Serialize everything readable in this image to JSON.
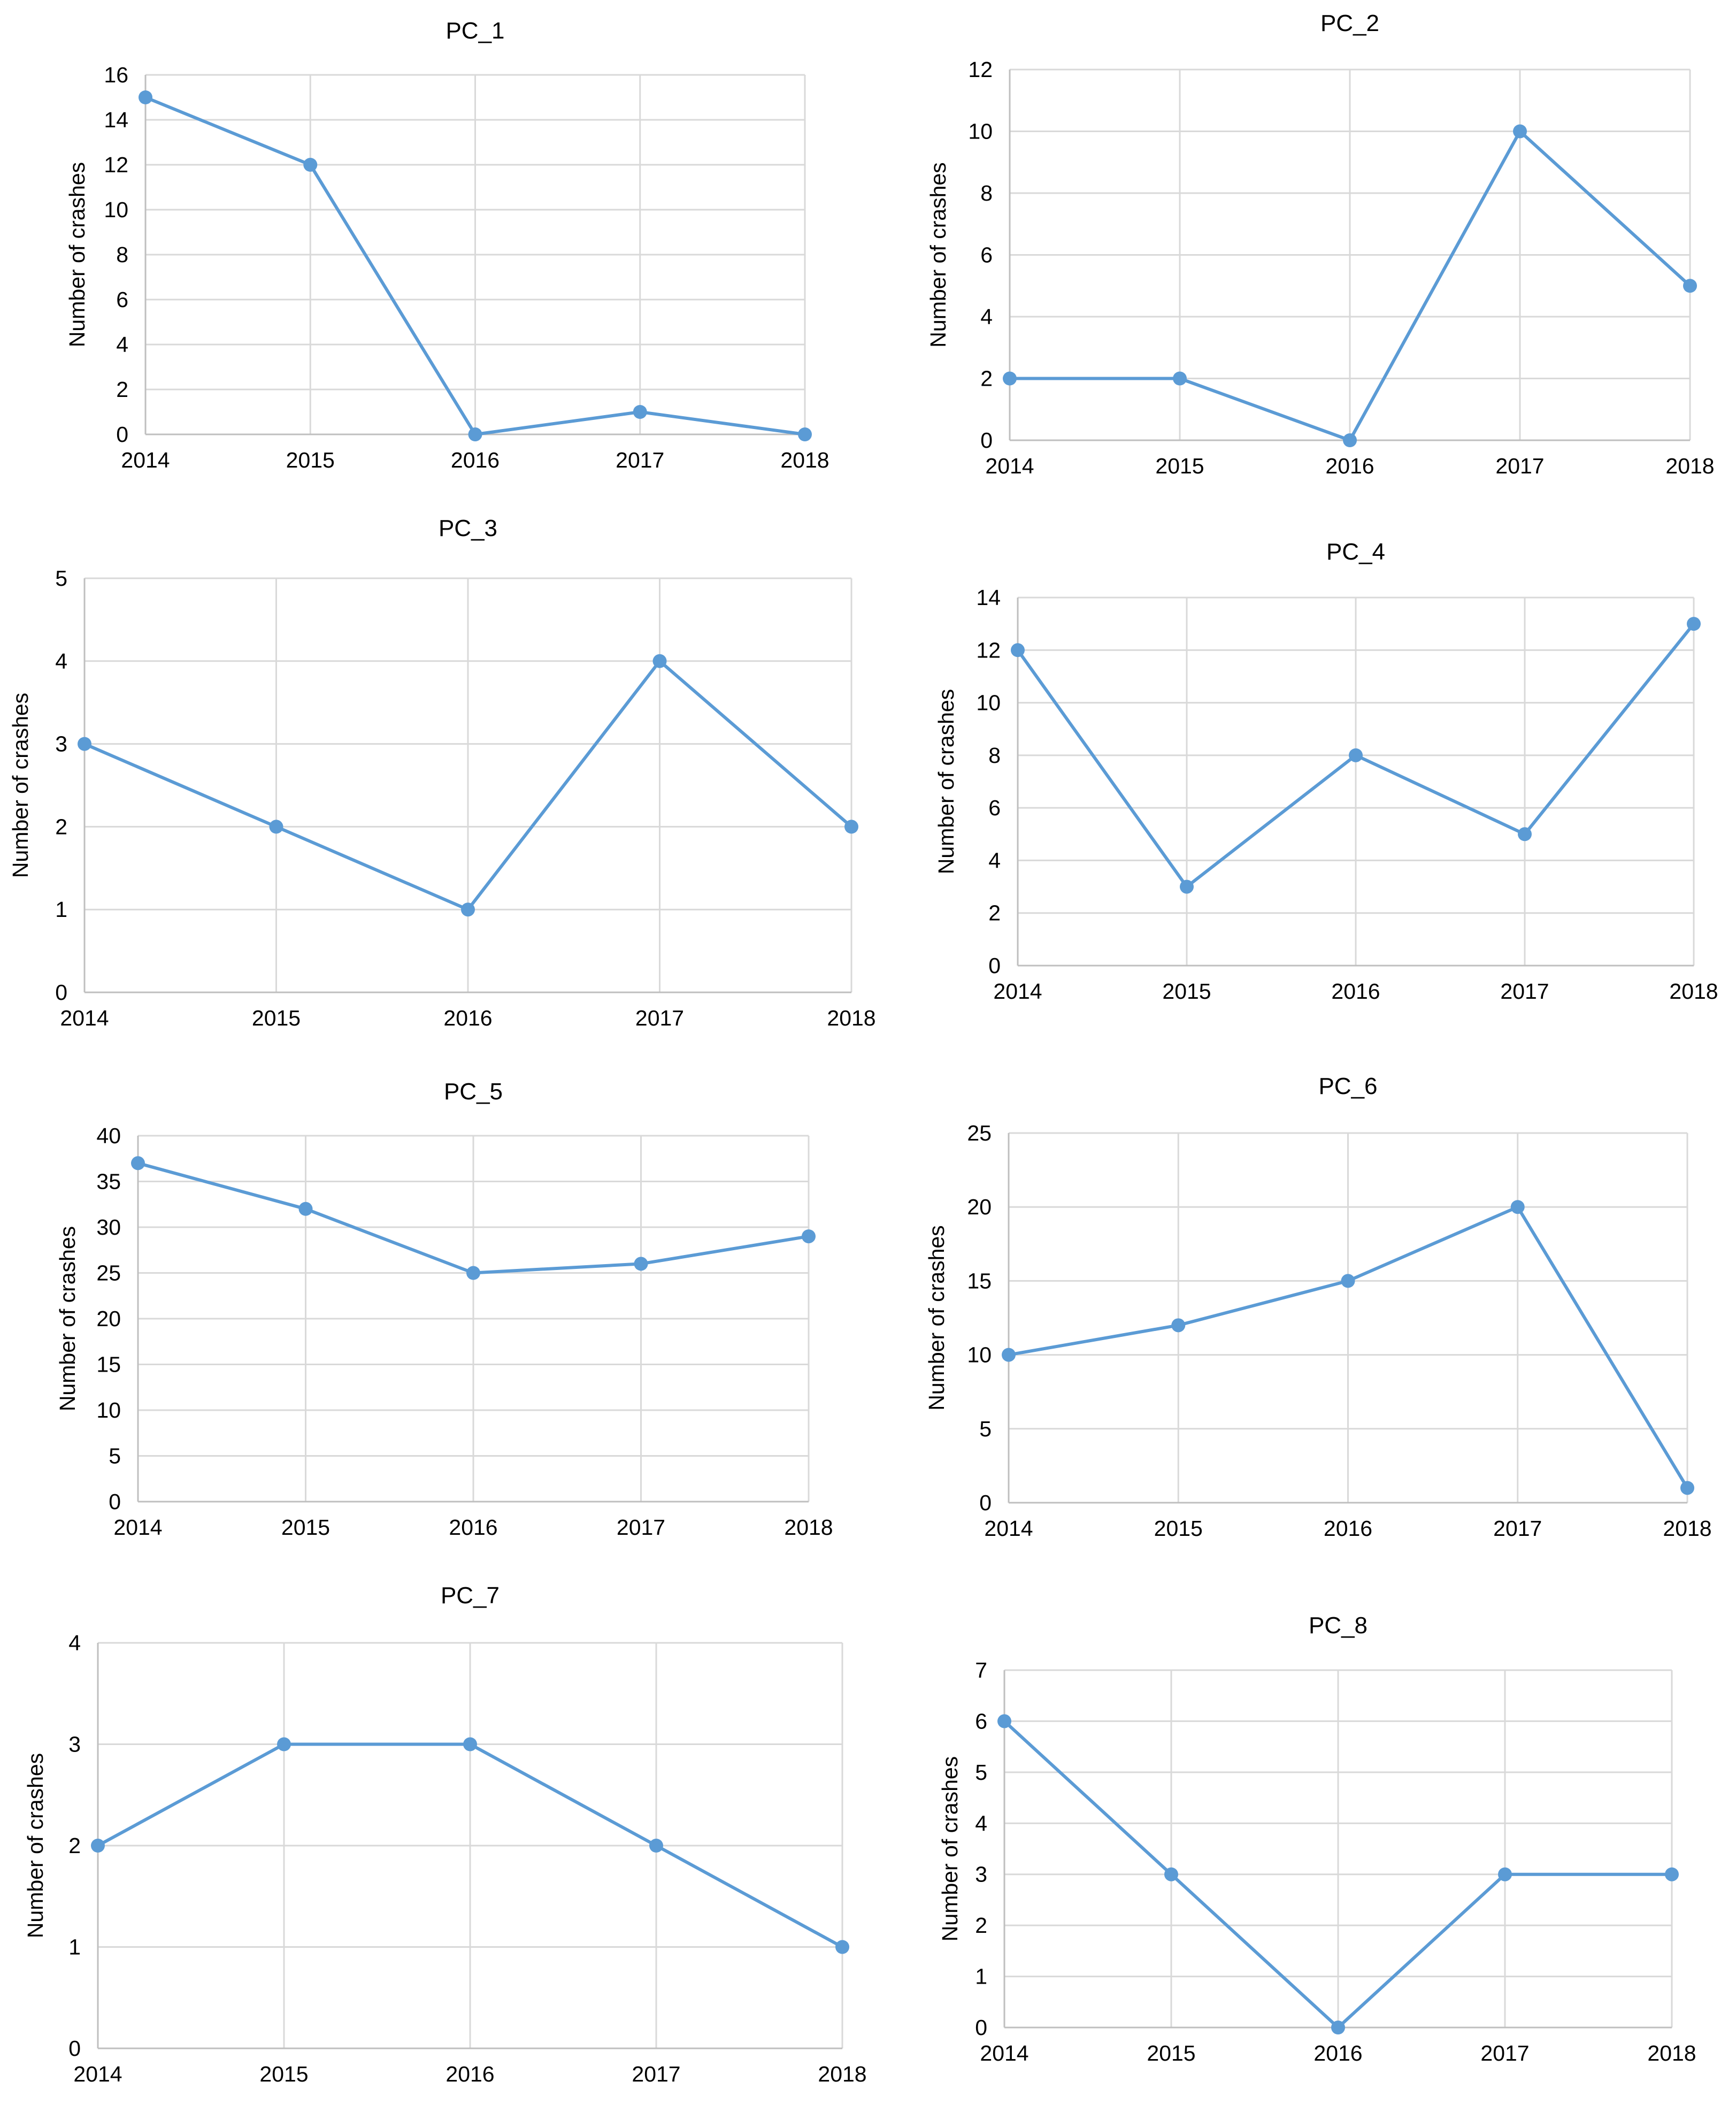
{
  "colors": {
    "series": "#5b9bd5",
    "grid": "#d9d9d9",
    "axis": "#bfbfbf",
    "text": "#000000",
    "background": "#ffffff"
  },
  "chart_data": [
    {
      "type": "line",
      "title": "PC_1",
      "ylabel": "Number of crashes",
      "xlabel": "",
      "x": [
        "2014",
        "2015",
        "2016",
        "2017",
        "2018"
      ],
      "values": [
        15,
        12,
        0,
        1,
        0
      ],
      "yticks": [
        0,
        2,
        4,
        6,
        8,
        10,
        12,
        14,
        16
      ],
      "ylim": [
        0,
        16
      ],
      "grid": true,
      "legend": "none"
    },
    {
      "type": "line",
      "title": "PC_2",
      "ylabel": "Number of crashes",
      "xlabel": "",
      "x": [
        "2014",
        "2015",
        "2016",
        "2017",
        "2018"
      ],
      "values": [
        2,
        2,
        0,
        10,
        5
      ],
      "yticks": [
        0,
        2,
        4,
        6,
        8,
        10,
        12
      ],
      "ylim": [
        0,
        12
      ],
      "grid": true,
      "legend": "none"
    },
    {
      "type": "line",
      "title": "PC_3",
      "ylabel": "Number of crashes",
      "xlabel": "",
      "x": [
        "2014",
        "2015",
        "2016",
        "2017",
        "2018"
      ],
      "values": [
        3,
        2,
        1,
        4,
        2
      ],
      "yticks": [
        0,
        1,
        2,
        3,
        4,
        5
      ],
      "ylim": [
        0,
        5
      ],
      "grid": true,
      "legend": "none"
    },
    {
      "type": "line",
      "title": "PC_4",
      "ylabel": "Number of crashes",
      "xlabel": "",
      "x": [
        "2014",
        "2015",
        "2016",
        "2017",
        "2018"
      ],
      "values": [
        12,
        3,
        8,
        5,
        13
      ],
      "yticks": [
        0,
        2,
        4,
        6,
        8,
        10,
        12,
        14
      ],
      "ylim": [
        0,
        14
      ],
      "grid": true,
      "legend": "none"
    },
    {
      "type": "line",
      "title": "PC_5",
      "ylabel": "Number of crashes",
      "xlabel": "",
      "x": [
        "2014",
        "2015",
        "2016",
        "2017",
        "2018"
      ],
      "values": [
        37,
        32,
        25,
        26,
        29
      ],
      "yticks": [
        0,
        5,
        10,
        15,
        20,
        25,
        30,
        35,
        40
      ],
      "ylim": [
        0,
        40
      ],
      "grid": true,
      "legend": "none"
    },
    {
      "type": "line",
      "title": "PC_6",
      "ylabel": "Number of crashes",
      "xlabel": "",
      "x": [
        "2014",
        "2015",
        "2016",
        "2017",
        "2018"
      ],
      "values": [
        10,
        12,
        15,
        20,
        1
      ],
      "yticks": [
        0,
        5,
        10,
        15,
        20,
        25
      ],
      "ylim": [
        0,
        25
      ],
      "grid": true,
      "legend": "none"
    },
    {
      "type": "line",
      "title": "PC_7",
      "ylabel": "Number of crashes",
      "xlabel": "",
      "x": [
        "2014",
        "2015",
        "2016",
        "2017",
        "2018"
      ],
      "values": [
        2,
        3,
        3,
        2,
        1
      ],
      "yticks": [
        0,
        1,
        2,
        3,
        4
      ],
      "ylim": [
        0,
        4
      ],
      "grid": true,
      "legend": "none"
    },
    {
      "type": "line",
      "title": "PC_8",
      "ylabel": "Number of crashes",
      "xlabel": "",
      "x": [
        "2014",
        "2015",
        "2016",
        "2017",
        "2018"
      ],
      "values": [
        6,
        3,
        0,
        3,
        3
      ],
      "yticks": [
        0,
        1,
        2,
        3,
        4,
        5,
        6,
        7
      ],
      "ylim": [
        0,
        7
      ],
      "grid": true,
      "legend": "none"
    }
  ]
}
